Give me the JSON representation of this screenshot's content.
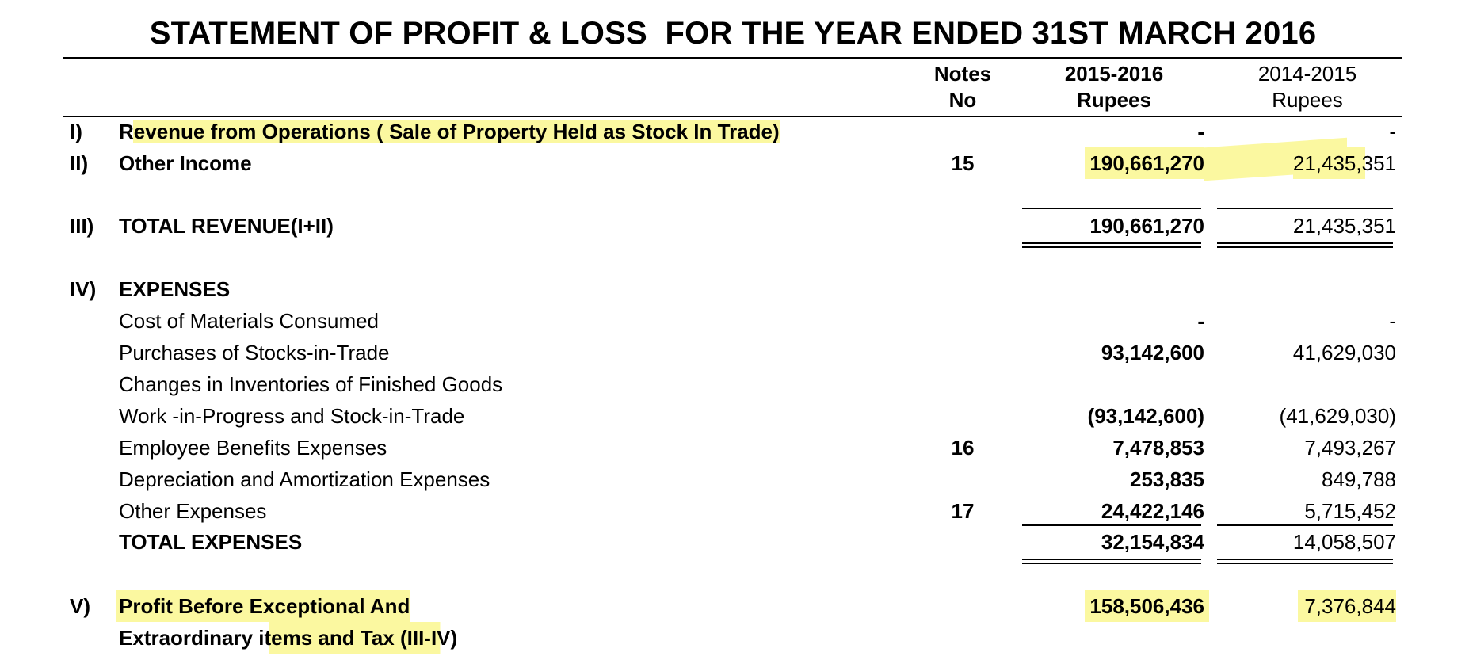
{
  "title": "STATEMENT OF PROFIT & LOSS  FOR THE YEAR ENDED 31ST MARCH 2016",
  "columns": {
    "notes": [
      "Notes",
      "No"
    ],
    "current": [
      "2015-2016",
      "Rupees"
    ],
    "previous": [
      "2014-2015",
      "Rupees"
    ]
  },
  "rows": [
    {
      "num": "I)",
      "label": "Revenue from Operations ( Sale of Property Held as Stock In Trade)",
      "note": "",
      "current": "-",
      "previous": "-"
    },
    {
      "num": "II)",
      "label": "Other Income",
      "note": "15",
      "current": "190,661,270",
      "previous": "21,435,351"
    },
    {
      "num": "III)",
      "label": "TOTAL REVENUE(I+II)",
      "note": "",
      "current": "190,661,270",
      "previous": "21,435,351"
    },
    {
      "num": "IV)",
      "label": "EXPENSES",
      "note": "",
      "current": "",
      "previous": ""
    },
    {
      "num": "",
      "label": "Cost of Materials Consumed",
      "note": "",
      "current": "-",
      "previous": "-"
    },
    {
      "num": "",
      "label": "Purchases of Stocks-in-Trade",
      "note": "",
      "current": "93,142,600",
      "previous": "41,629,030"
    },
    {
      "num": "",
      "label": "Changes in Inventories of Finished Goods",
      "note": "",
      "current": "",
      "previous": ""
    },
    {
      "num": "",
      "label": "Work -in-Progress and Stock-in-Trade",
      "note": "",
      "current": "(93,142,600)",
      "previous": "(41,629,030)"
    },
    {
      "num": "",
      "label": "Employee Benefits Expenses",
      "note": "16",
      "current": "7,478,853",
      "previous": "7,493,267"
    },
    {
      "num": "",
      "label": "Depreciation and Amortization Expenses",
      "note": "",
      "current": "253,835",
      "previous": "849,788"
    },
    {
      "num": "",
      "label": "Other Expenses",
      "note": "17",
      "current": "24,422,146",
      "previous": "5,715,452"
    },
    {
      "num": "",
      "label": "TOTAL EXPENSES",
      "note": "",
      "current": "32,154,834",
      "previous": "14,058,507"
    },
    {
      "num": "V)",
      "label": "Profit Before Exceptional And",
      "note": "",
      "current": "158,506,436",
      "previous": "7,376,844"
    },
    {
      "num": "",
      "label": "Extraordinary items and Tax (III-IV)",
      "note": "",
      "current": "",
      "previous": ""
    }
  ],
  "highlight_color": "#fbf8a0"
}
